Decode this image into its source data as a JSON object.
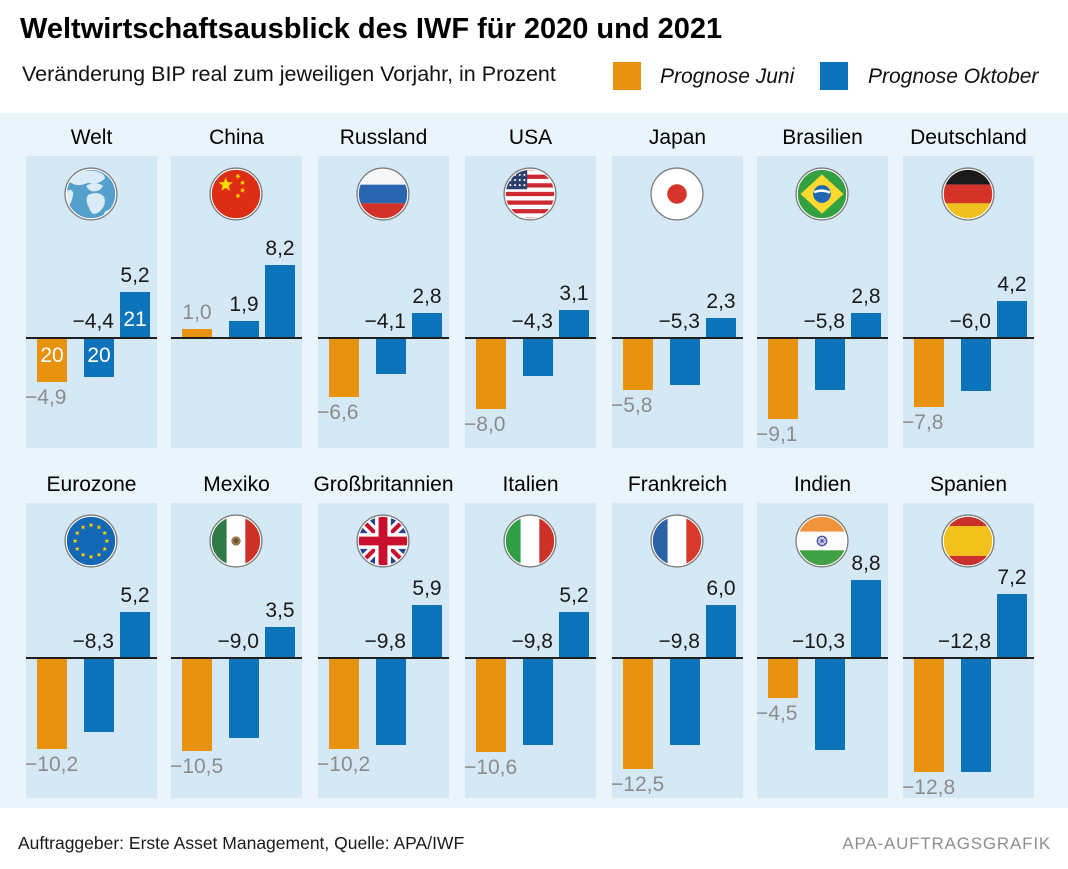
{
  "header": {
    "title": "Weltwirtschaftsausblick des IWF für 2020 und 2021",
    "subtitle": "Veränderung BIP real zum jeweiligen Vorjahr, in Prozent"
  },
  "legend": {
    "juni": {
      "label": "Prognose Juni",
      "color": "#E8930F"
    },
    "oktober": {
      "label": "Prognose Oktober",
      "color": "#0D73BA"
    }
  },
  "footer": {
    "left": "Auftraggeber: Erste Asset Management, Quelle: APA/IWF",
    "right": "APA-AUFTRAGSGRAFIK"
  },
  "colors": {
    "band_background": "#EAF4FB",
    "panel_background": "#D5E8F6",
    "bar_juni": "#E8930F",
    "bar_oktober": "#0D73BA",
    "value_gray": "#8C8C8C",
    "value_black": "#1A1A1A",
    "zero_line": "#1F1F1F"
  },
  "chart_data": {
    "type": "bar",
    "title": "Weltwirtschaftsausblick des IWF für 2020 und 2021",
    "subtitle": "Veränderung BIP real zum jeweiligen Vorjahr, in Prozent",
    "unit": "Prozent",
    "decimal_separator": ",",
    "legend_position": "top-right",
    "grid": false,
    "series_names": [
      "Prognose Juni (2020)",
      "Prognose Oktober (2020)",
      "Prognose Oktober (2021)"
    ],
    "rows": [
      [
        {
          "id": "welt",
          "name": "Welt",
          "flag": "globe",
          "values": [
            -4.9,
            -4.4,
            5.2
          ],
          "labels": [
            "−4,9",
            "−4,4",
            "5,2"
          ],
          "year_labels": [
            "20",
            "20",
            "21"
          ]
        },
        {
          "id": "china",
          "name": "China",
          "flag": "cn",
          "values": [
            1.0,
            1.9,
            8.2
          ],
          "labels": [
            "1,0",
            "1,9",
            "8,2"
          ]
        },
        {
          "id": "russland",
          "name": "Russland",
          "flag": "ru",
          "values": [
            -6.6,
            -4.1,
            2.8
          ],
          "labels": [
            "−6,6",
            "−4,1",
            "2,8"
          ]
        },
        {
          "id": "usa",
          "name": "USA",
          "flag": "us",
          "values": [
            -8.0,
            -4.3,
            3.1
          ],
          "labels": [
            "−8,0",
            "−4,3",
            "3,1"
          ]
        },
        {
          "id": "japan",
          "name": "Japan",
          "flag": "jp",
          "values": [
            -5.8,
            -5.3,
            2.3
          ],
          "labels": [
            "−5,8",
            "−5,3",
            "2,3"
          ]
        },
        {
          "id": "brasilien",
          "name": "Brasilien",
          "flag": "br",
          "values": [
            -9.1,
            -5.8,
            2.8
          ],
          "labels": [
            "−9,1",
            "−5,8",
            "2,8"
          ]
        },
        {
          "id": "deutschland",
          "name": "Deutschland",
          "flag": "de",
          "values": [
            -7.8,
            -6.0,
            4.2
          ],
          "labels": [
            "−7,8",
            "−6,0",
            "4,2"
          ]
        }
      ],
      [
        {
          "id": "eurozone",
          "name": "Eurozone",
          "flag": "eu",
          "values": [
            -10.2,
            -8.3,
            5.2
          ],
          "labels": [
            "−10,2",
            "−8,3",
            "5,2"
          ]
        },
        {
          "id": "mexiko",
          "name": "Mexiko",
          "flag": "mx",
          "values": [
            -10.5,
            -9.0,
            3.5
          ],
          "labels": [
            "−10,5",
            "−9,0",
            "3,5"
          ]
        },
        {
          "id": "grossbritannien",
          "name": "Großbritannien",
          "flag": "gb",
          "values": [
            -10.2,
            -9.8,
            5.9
          ],
          "labels": [
            "−10,2",
            "−9,8",
            "5,9"
          ]
        },
        {
          "id": "italien",
          "name": "Italien",
          "flag": "it",
          "values": [
            -10.6,
            -9.8,
            5.2
          ],
          "labels": [
            "−10,6",
            "−9,8",
            "5,2"
          ]
        },
        {
          "id": "frankreich",
          "name": "Frankreich",
          "flag": "fr",
          "values": [
            -12.5,
            -9.8,
            6.0
          ],
          "labels": [
            "−12,5",
            "−9,8",
            "6,0"
          ]
        },
        {
          "id": "indien",
          "name": "Indien",
          "flag": "in",
          "values": [
            -4.5,
            -10.3,
            8.8
          ],
          "labels": [
            "−4,5",
            "−10,3",
            "8,8"
          ]
        },
        {
          "id": "spanien",
          "name": "Spanien",
          "flag": "es",
          "values": [
            -12.8,
            -12.8,
            7.2
          ],
          "labels": [
            "−12,8",
            "−12,8",
            "7,2"
          ]
        }
      ]
    ]
  }
}
